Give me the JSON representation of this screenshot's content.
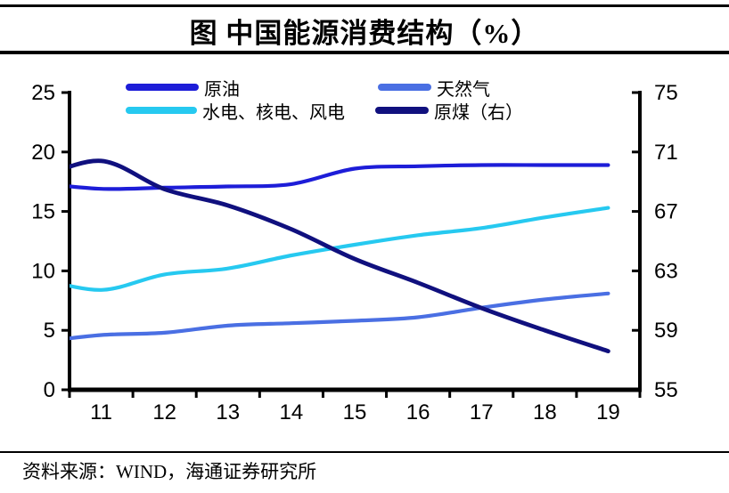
{
  "header": {
    "title": "图 中国能源消费结构（%）"
  },
  "source": {
    "text": "资料来源：WIND，海通证券研究所"
  },
  "colors": {
    "axis": "#000000",
    "text": "#000000"
  },
  "chart_data": {
    "type": "line",
    "title": "图 中国能源消费结构（%）",
    "x": [
      2010,
      2011,
      2012,
      2013,
      2014,
      2015,
      2016,
      2017,
      2018,
      2019
    ],
    "x_tick_labels": [
      "11",
      "12",
      "13",
      "14",
      "15",
      "16",
      "17",
      "18",
      "19"
    ],
    "x_axis": {
      "min": 2010.5,
      "max": 2019.5
    },
    "left_axis": {
      "min": 0,
      "max": 25,
      "ticks": [
        0,
        5,
        10,
        15,
        20,
        25
      ]
    },
    "right_axis": {
      "min": 55,
      "max": 75,
      "ticks": [
        55,
        59,
        63,
        67,
        71,
        75
      ]
    },
    "grid": false,
    "legend_position": "top",
    "series": [
      {
        "name": "原油",
        "axis": "left",
        "color": "#1d1dd8",
        "values": [
          17.4,
          16.9,
          17.0,
          17.1,
          17.3,
          18.6,
          18.8,
          18.9,
          18.9,
          18.9
        ]
      },
      {
        "name": "天然气",
        "axis": "left",
        "color": "#4a6fe3",
        "values": [
          4.0,
          4.6,
          4.8,
          5.4,
          5.6,
          5.8,
          6.1,
          6.9,
          7.6,
          8.1
        ]
      },
      {
        "name": "水电、核电、风电",
        "axis": "left",
        "color": "#26c9f0",
        "values": [
          9.4,
          8.4,
          9.7,
          10.2,
          11.3,
          12.2,
          13.0,
          13.6,
          14.5,
          15.3
        ]
      },
      {
        "name": "原煤（右）",
        "axis": "right",
        "color": "#10107e",
        "values": [
          69.2,
          70.4,
          68.5,
          67.4,
          65.8,
          63.8,
          62.2,
          60.5,
          59.0,
          57.6
        ]
      }
    ]
  }
}
